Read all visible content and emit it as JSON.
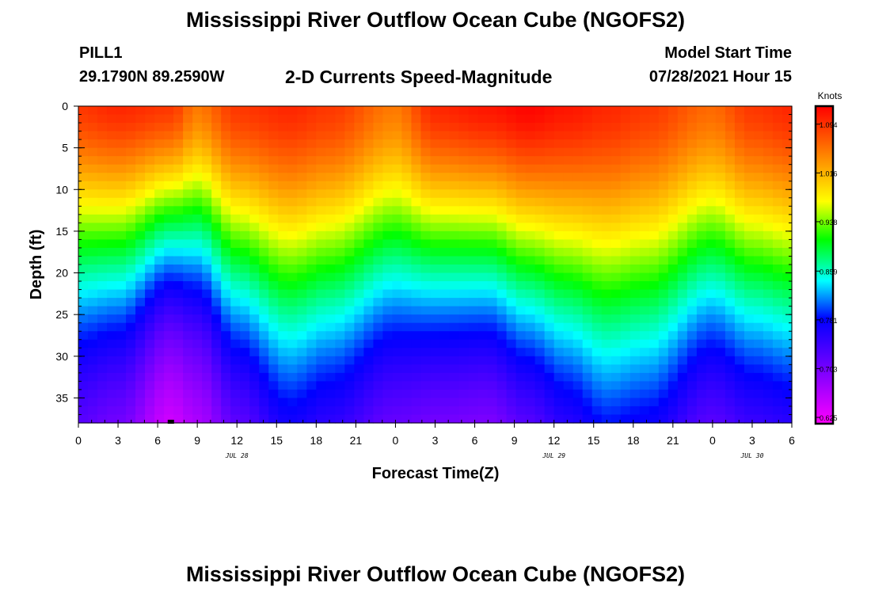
{
  "header": {
    "title": "Mississippi River Outflow Ocean Cube (NGOFS2)",
    "station": "PILL1",
    "coords": "29.1790N  89.2590W",
    "subtitle": "2-D Currents Speed-Magnitude",
    "model_start_label": "Model Start Time",
    "model_start_value": "07/28/2021 Hour 15"
  },
  "footer": {
    "title": "Mississippi River Outflow Ocean Cube (NGOFS2)"
  },
  "chart_data": {
    "type": "heatmap",
    "title": "2-D Currents Speed-Magnitude",
    "xlabel": "Forecast Time(Z)",
    "ylabel": "Depth (ft)",
    "x_range_hours": [
      0,
      54
    ],
    "x_ticks": [
      {
        "h": 0,
        "label": "0"
      },
      {
        "h": 3,
        "label": "3"
      },
      {
        "h": 6,
        "label": "6"
      },
      {
        "h": 9,
        "label": "9"
      },
      {
        "h": 12,
        "label": "12"
      },
      {
        "h": 15,
        "label": "15"
      },
      {
        "h": 18,
        "label": "18"
      },
      {
        "h": 21,
        "label": "21"
      },
      {
        "h": 24,
        "label": "0"
      },
      {
        "h": 27,
        "label": "3"
      },
      {
        "h": 30,
        "label": "6"
      },
      {
        "h": 33,
        "label": "9"
      },
      {
        "h": 36,
        "label": "12"
      },
      {
        "h": 39,
        "label": "15"
      },
      {
        "h": 42,
        "label": "18"
      },
      {
        "h": 45,
        "label": "21"
      },
      {
        "h": 48,
        "label": "0"
      },
      {
        "h": 51,
        "label": "3"
      },
      {
        "h": 54,
        "label": "6"
      }
    ],
    "date_labels": [
      {
        "h": 12,
        "label": "JUL 28"
      },
      {
        "h": 36,
        "label": "JUL 29"
      },
      {
        "h": 51,
        "label": "JUL 30"
      }
    ],
    "y_range_ft": [
      0,
      38
    ],
    "y_ticks": [
      0,
      5,
      10,
      15,
      20,
      25,
      30,
      35
    ],
    "colorbar": {
      "unit": "Knots",
      "min": 0.625,
      "max": 1.133,
      "ticks": [
        "0.625",
        "0.703",
        "0.781",
        "0.859",
        "0.938",
        "1.016",
        "1.094"
      ]
    },
    "marker_hour": 7,
    "profile_hours": [
      0,
      3,
      7,
      9,
      12,
      16,
      19,
      24,
      27,
      31,
      34,
      37,
      40,
      43,
      48,
      51,
      54
    ],
    "surface_speed_knots": [
      1.1,
      1.11,
      1.1,
      1.06,
      1.1,
      1.11,
      1.1,
      1.06,
      1.11,
      1.12,
      1.13,
      1.12,
      1.11,
      1.1,
      1.07,
      1.1,
      1.11
    ],
    "bottom_speed_knots": [
      0.68,
      0.66,
      0.62,
      0.64,
      0.66,
      0.69,
      0.68,
      0.66,
      0.65,
      0.64,
      0.65,
      0.67,
      0.69,
      0.68,
      0.66,
      0.67,
      0.67
    ],
    "decay_depth_ft": [
      24,
      24,
      21,
      22,
      26,
      29,
      28,
      26,
      25,
      25,
      27,
      29,
      31,
      31,
      27,
      28,
      29
    ],
    "decay_exponent": 1.6
  }
}
